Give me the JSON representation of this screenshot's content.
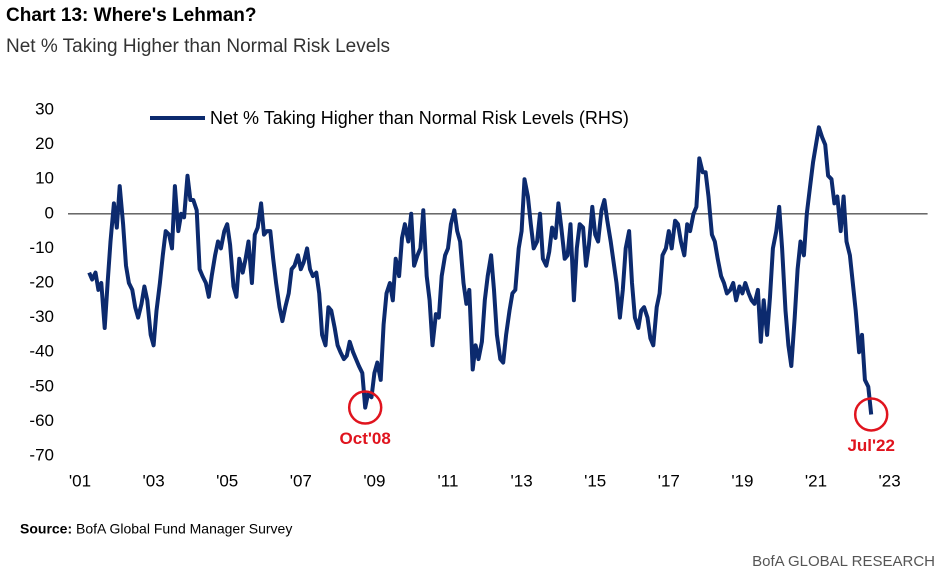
{
  "chart_data": {
    "type": "line",
    "title": "Chart 13: Where's Lehman?",
    "subtitle": "Net % Taking Higher than Normal Risk Levels",
    "source_label": "Source:",
    "source_text": "BofA Global Fund Manager Survey",
    "footer": "BofA GLOBAL RESEARCH",
    "legend": "top",
    "zero_line": true,
    "xlim": [
      2001,
      2023
    ],
    "xticks": [
      {
        "value": 2001,
        "label": "'01"
      },
      {
        "value": 2003,
        "label": "'03"
      },
      {
        "value": 2005,
        "label": "'05"
      },
      {
        "value": 2007,
        "label": "'07"
      },
      {
        "value": 2009,
        "label": "'09"
      },
      {
        "value": 2011,
        "label": "'11"
      },
      {
        "value": 2013,
        "label": "'13"
      },
      {
        "value": 2015,
        "label": "'15"
      },
      {
        "value": 2017,
        "label": "'17"
      },
      {
        "value": 2019,
        "label": "'19"
      },
      {
        "value": 2021,
        "label": "'21"
      },
      {
        "value": 2023,
        "label": "'23"
      }
    ],
    "ylim": [
      -70,
      30
    ],
    "yticks": [
      30,
      20,
      10,
      0,
      -10,
      -20,
      -30,
      -40,
      -50,
      -60,
      -70
    ],
    "annotations": [
      {
        "text": "Oct'08",
        "x": 2008.75,
        "y": -56,
        "color": "#e0141e"
      },
      {
        "text": "Jul'22",
        "x": 2022.5,
        "y": -58,
        "color": "#e0141e"
      }
    ],
    "x": [
      2001.25,
      2001.33,
      2001.42,
      2001.5,
      2001.58,
      2001.67,
      2001.75,
      2001.83,
      2001.92,
      2002,
      2002.08,
      2002.17,
      2002.25,
      2002.33,
      2002.42,
      2002.5,
      2002.58,
      2002.67,
      2002.75,
      2002.83,
      2002.92,
      2003,
      2003.08,
      2003.17,
      2003.25,
      2003.33,
      2003.42,
      2003.5,
      2003.58,
      2003.67,
      2003.75,
      2003.83,
      2003.92,
      2004,
      2004.08,
      2004.17,
      2004.25,
      2004.33,
      2004.42,
      2004.5,
      2004.58,
      2004.67,
      2004.75,
      2004.83,
      2004.92,
      2005,
      2005.08,
      2005.17,
      2005.25,
      2005.33,
      2005.42,
      2005.5,
      2005.58,
      2005.67,
      2005.75,
      2005.83,
      2005.92,
      2006,
      2006.08,
      2006.17,
      2006.25,
      2006.33,
      2006.42,
      2006.5,
      2006.58,
      2006.67,
      2006.75,
      2006.83,
      2006.92,
      2007,
      2007.08,
      2007.17,
      2007.25,
      2007.33,
      2007.42,
      2007.5,
      2007.58,
      2007.67,
      2007.75,
      2007.83,
      2007.92,
      2008,
      2008.08,
      2008.17,
      2008.25,
      2008.33,
      2008.42,
      2008.5,
      2008.58,
      2008.67,
      2008.75,
      2008.83,
      2008.92,
      2009,
      2009.08,
      2009.17,
      2009.25,
      2009.33,
      2009.42,
      2009.5,
      2009.58,
      2009.67,
      2009.75,
      2009.83,
      2009.92,
      2010,
      2010.08,
      2010.17,
      2010.25,
      2010.33,
      2010.42,
      2010.5,
      2010.58,
      2010.67,
      2010.75,
      2010.83,
      2010.92,
      2011,
      2011.08,
      2011.17,
      2011.25,
      2011.33,
      2011.42,
      2011.5,
      2011.58,
      2011.67,
      2011.75,
      2011.83,
      2011.92,
      2012,
      2012.08,
      2012.17,
      2012.25,
      2012.33,
      2012.42,
      2012.5,
      2012.58,
      2012.67,
      2012.75,
      2012.83,
      2012.92,
      2013,
      2013.08,
      2013.17,
      2013.25,
      2013.33,
      2013.42,
      2013.5,
      2013.58,
      2013.67,
      2013.75,
      2013.83,
      2013.92,
      2014,
      2014.08,
      2014.17,
      2014.25,
      2014.33,
      2014.42,
      2014.5,
      2014.58,
      2014.67,
      2014.75,
      2014.83,
      2014.92,
      2015,
      2015.08,
      2015.17,
      2015.25,
      2015.33,
      2015.42,
      2015.5,
      2015.58,
      2015.67,
      2015.75,
      2015.83,
      2015.92,
      2016,
      2016.08,
      2016.17,
      2016.25,
      2016.33,
      2016.42,
      2016.5,
      2016.58,
      2016.67,
      2016.75,
      2016.83,
      2016.92,
      2017,
      2017.08,
      2017.17,
      2017.25,
      2017.33,
      2017.42,
      2017.5,
      2017.58,
      2017.67,
      2017.75,
      2017.83,
      2017.92,
      2018,
      2018.08,
      2018.17,
      2018.25,
      2018.33,
      2018.42,
      2018.5,
      2018.58,
      2018.67,
      2018.75,
      2018.83,
      2018.92,
      2019,
      2019.08,
      2019.17,
      2019.25,
      2019.33,
      2019.42,
      2019.5,
      2019.58,
      2019.67,
      2019.75,
      2019.83,
      2019.92,
      2020,
      2020.08,
      2020.17,
      2020.25,
      2020.33,
      2020.42,
      2020.5,
      2020.58,
      2020.67,
      2020.75,
      2020.83,
      2020.92,
      2021,
      2021.08,
      2021.17,
      2021.25,
      2021.33,
      2021.42,
      2021.5,
      2021.58,
      2021.67,
      2021.75,
      2021.83,
      2021.92,
      2022,
      2022.08,
      2022.17,
      2022.25,
      2022.33,
      2022.42,
      2022.5
    ],
    "series": [
      {
        "name": "Net % Taking Higher than Normal Risk Levels (RHS)",
        "color": "#0c2a6e",
        "values": [
          -17,
          -19,
          -17,
          -22,
          -20,
          -33,
          -20,
          -8,
          3,
          -4,
          8,
          -3,
          -15,
          -20,
          -22,
          -27,
          -30,
          -26,
          -21,
          -25,
          -35,
          -38,
          -28,
          -20,
          -12,
          -5,
          -6,
          -10,
          8,
          -5,
          0,
          -1,
          11,
          4,
          4,
          1,
          -16,
          -18,
          -20,
          -24,
          -18,
          -12,
          -8,
          -10,
          -5,
          -3,
          -9,
          -21,
          -24,
          -13,
          -17,
          -13,
          -8,
          -20,
          -6,
          -4,
          3,
          -6,
          -5,
          -5,
          -13,
          -20,
          -27,
          -31,
          -27,
          -23,
          -16,
          -15,
          -12,
          -16,
          -14,
          -10,
          -16,
          -18,
          -17,
          -23,
          -35,
          -38,
          -27,
          -28,
          -33,
          -38,
          -40,
          -42,
          -41,
          -37,
          -40,
          -42,
          -44,
          -46,
          -56,
          -52,
          -53,
          -46,
          -43,
          -48,
          -32,
          -23,
          -20,
          -25,
          -13,
          -18,
          -7,
          -3,
          -8,
          0,
          -15,
          -12,
          -10,
          1,
          -18,
          -25,
          -38,
          -29,
          -30,
          -18,
          -12,
          -10,
          -3,
          1,
          -5,
          -8,
          -20,
          -26,
          -22,
          -45,
          -38,
          -42,
          -37,
          -25,
          -18,
          -12,
          -22,
          -35,
          -42,
          -43,
          -35,
          -28,
          -23,
          -22,
          -10,
          -5,
          10,
          5,
          -3,
          -10,
          -8,
          0,
          -13,
          -15,
          -11,
          -4,
          -7,
          3,
          -4,
          -13,
          -12,
          -3,
          -25,
          -10,
          -3,
          -4,
          -15,
          -9,
          2,
          -6,
          -8,
          1,
          4,
          -2,
          -8,
          -14,
          -20,
          -30,
          -22,
          -10,
          -5,
          -20,
          -30,
          -33,
          -28,
          -27,
          -30,
          -36,
          -38,
          -27,
          -23,
          -12,
          -10,
          -5,
          -10,
          -2,
          -3,
          -8,
          -12,
          -3,
          -5,
          0,
          2,
          16,
          12,
          12,
          5,
          -6,
          -8,
          -13,
          -18,
          -20,
          -23,
          -22,
          -20,
          -25,
          -21,
          -23,
          -20,
          -23,
          -25,
          -26,
          -22,
          -37,
          -25,
          -35,
          -24,
          -10,
          -5,
          2,
          -10,
          -28,
          -38,
          -44,
          -30,
          -16,
          -8,
          -12,
          0,
          7,
          15,
          20,
          25,
          22,
          20,
          11,
          10,
          3,
          5,
          -5,
          5,
          -8,
          -12,
          -20,
          -28,
          -40,
          -35,
          -48,
          -50,
          -58
        ]
      }
    ]
  }
}
